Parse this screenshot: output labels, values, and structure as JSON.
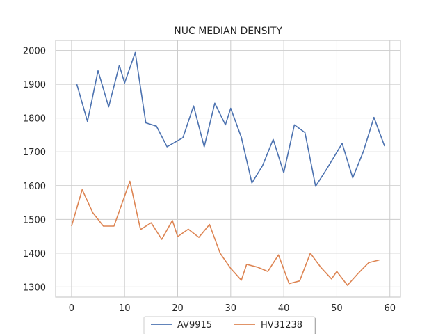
{
  "chart_data": {
    "type": "line",
    "title": "NUC MEDIAN DENSITY",
    "xlabel": "",
    "ylabel": "",
    "xlim": [
      -3,
      62
    ],
    "ylim": [
      1270,
      2030
    ],
    "xticks": [
      0,
      10,
      20,
      30,
      40,
      50,
      60
    ],
    "yticks": [
      1300,
      1400,
      1500,
      1600,
      1700,
      1800,
      1900,
      2000
    ],
    "grid": true,
    "legend": "bottom-center",
    "series": [
      {
        "name": "AV9915",
        "color": "#4c72b0",
        "x": [
          1,
          3,
          5,
          7,
          9,
          10,
          12,
          14,
          16,
          18,
          21,
          23,
          25,
          27,
          29,
          30,
          32,
          34,
          36,
          38,
          40,
          42,
          44,
          46,
          48,
          51,
          53,
          55,
          57,
          59
        ],
        "y": [
          1900,
          1790,
          1940,
          1833,
          1956,
          1904,
          1994,
          1786,
          1776,
          1715,
          1742,
          1836,
          1715,
          1844,
          1780,
          1829,
          1743,
          1608,
          1659,
          1737,
          1638,
          1780,
          1757,
          1598,
          1647,
          1725,
          1623,
          1701,
          1802,
          1717
        ]
      },
      {
        "name": "HV31238",
        "color": "#dd8452",
        "x": [
          0,
          2,
          4,
          6,
          8,
          11,
          13,
          15,
          17,
          19,
          20,
          22,
          24,
          26,
          28,
          30,
          32,
          33,
          35,
          37,
          39,
          41,
          43,
          45,
          47,
          49,
          50,
          52,
          54,
          56,
          58
        ],
        "y": [
          1480,
          1588,
          1520,
          1480,
          1480,
          1613,
          1470,
          1490,
          1441,
          1497,
          1449,
          1471,
          1447,
          1485,
          1400,
          1355,
          1320,
          1367,
          1359,
          1346,
          1395,
          1310,
          1318,
          1400,
          1358,
          1324,
          1346,
          1305,
          1340,
          1372,
          1380
        ]
      }
    ]
  }
}
